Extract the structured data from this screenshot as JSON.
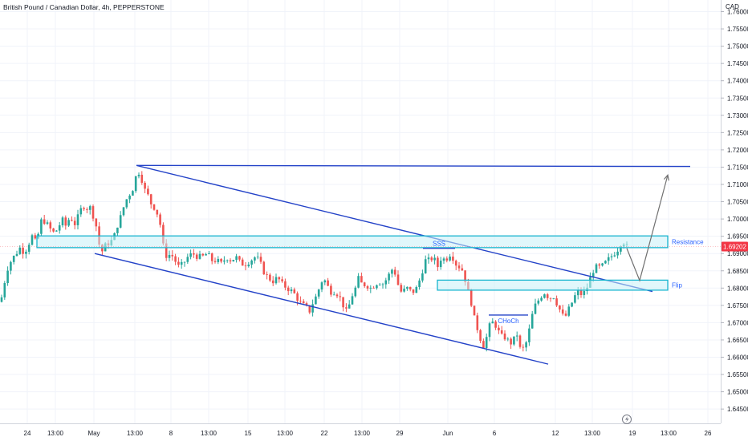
{
  "symbol_title": "British Pound / Canadian Dollar, 4h, PEPPERSTONE",
  "currency": "CAD",
  "last_price": "1.69202",
  "colors": {
    "up": "#26a69a",
    "down": "#ef5350",
    "trendline": "#2443c8",
    "zone_fill": "#c8f0f7",
    "zone_stroke": "#17b5cf",
    "projection": "#707070",
    "grid": "#f0f3fa",
    "price_tag": "#f23645"
  },
  "chart_data": {
    "type": "candlestick",
    "title": "British Pound / Canadian Dollar, 4h, PEPPERSTONE",
    "ylabel": "CAD",
    "ylim": [
      1.643,
      1.7655
    ],
    "y_ticks": [
      "1.76000",
      "1.75500",
      "1.75000",
      "1.74500",
      "1.74000",
      "1.73500",
      "1.73000",
      "1.72500",
      "1.72000",
      "1.71500",
      "1.71000",
      "1.70500",
      "1.70000",
      "1.69500",
      "1.69000",
      "1.68500",
      "1.68000",
      "1.67500",
      "1.67000",
      "1.66500",
      "1.66000",
      "1.65500",
      "1.65000",
      "1.64500"
    ],
    "x_ticks": [
      "24",
      "13:00",
      "May",
      "13:00",
      "8",
      "13:00",
      "15",
      "13:00",
      "22",
      "13:00",
      "29",
      "Jun",
      "6",
      "12",
      "13:00",
      "19",
      "13:00",
      "26"
    ],
    "path": [
      [
        0,
        1.676
      ],
      [
        3,
        1.678
      ],
      [
        8,
        1.685
      ],
      [
        14,
        1.688
      ],
      [
        20,
        1.69
      ],
      [
        26,
        1.692
      ],
      [
        30,
        1.69
      ],
      [
        34,
        1.692
      ],
      [
        40,
        1.695
      ],
      [
        45,
        1.693
      ],
      [
        48,
        1.696
      ],
      [
        52,
        1.7
      ],
      [
        57,
        1.699
      ],
      [
        60,
        1.698
      ],
      [
        66,
        1.696
      ],
      [
        72,
        1.697
      ],
      [
        77,
        1.7
      ],
      [
        82,
        1.698
      ],
      [
        88,
        1.701
      ],
      [
        92,
        1.698
      ],
      [
        98,
        1.701
      ],
      [
        103,
        1.704
      ],
      [
        108,
        1.703
      ],
      [
        111,
        1.704
      ],
      [
        116,
        1.701
      ],
      [
        121,
        1.697
      ],
      [
        124,
        1.692
      ],
      [
        126,
        1.69
      ],
      [
        130,
        1.692
      ],
      [
        135,
        1.693
      ],
      [
        141,
        1.694
      ],
      [
        146,
        1.698
      ],
      [
        151,
        1.701
      ],
      [
        156,
        1.705
      ],
      [
        161,
        1.707
      ],
      [
        166,
        1.709
      ],
      [
        169,
        1.712
      ],
      [
        172,
        1.714
      ],
      [
        176,
        1.712
      ],
      [
        181,
        1.708
      ],
      [
        184,
        1.707
      ],
      [
        189,
        1.704
      ],
      [
        194,
        1.703
      ],
      [
        198,
        1.7
      ],
      [
        201,
        1.697
      ],
      [
        204,
        1.691
      ],
      [
        208,
        1.689
      ],
      [
        213,
        1.69
      ],
      [
        218,
        1.688
      ],
      [
        223,
        1.686
      ],
      [
        228,
        1.687
      ],
      [
        234,
        1.689
      ],
      [
        240,
        1.69
      ],
      [
        247,
        1.689
      ],
      [
        252,
        1.689
      ],
      [
        258,
        1.69
      ],
      [
        264,
        1.688
      ],
      [
        270,
        1.688
      ],
      [
        276,
        1.687
      ],
      [
        282,
        1.689
      ],
      [
        288,
        1.688
      ],
      [
        294,
        1.689
      ],
      [
        300,
        1.687
      ],
      [
        306,
        1.687
      ],
      [
        312,
        1.688
      ],
      [
        318,
        1.689
      ],
      [
        323,
        1.688
      ],
      [
        328,
        1.685
      ],
      [
        334,
        1.683
      ],
      [
        340,
        1.682
      ],
      [
        346,
        1.683
      ],
      [
        352,
        1.681
      ],
      [
        358,
        1.68
      ],
      [
        364,
        1.679
      ],
      [
        368,
        1.678
      ],
      [
        373,
        1.676
      ],
      [
        378,
        1.675
      ],
      [
        384,
        1.674
      ],
      [
        387,
        1.673
      ],
      [
        390,
        1.676
      ],
      [
        395,
        1.678
      ],
      [
        399,
        1.681
      ],
      [
        403,
        1.683
      ],
      [
        407,
        1.681
      ],
      [
        412,
        1.679
      ],
      [
        417,
        1.679
      ],
      [
        422,
        1.678
      ],
      [
        426,
        1.676
      ],
      [
        431,
        1.673
      ],
      [
        435,
        1.675
      ],
      [
        439,
        1.678
      ],
      [
        443,
        1.68
      ],
      [
        447,
        1.683
      ],
      [
        451,
        1.681
      ],
      [
        456,
        1.681
      ],
      [
        462,
        1.68
      ],
      [
        467,
        1.681
      ],
      [
        472,
        1.682
      ],
      [
        476,
        1.681
      ],
      [
        480,
        1.682
      ],
      [
        485,
        1.684
      ],
      [
        490,
        1.686
      ],
      [
        494,
        1.683
      ],
      [
        498,
        1.679
      ],
      [
        502,
        1.679
      ],
      [
        507,
        1.68
      ],
      [
        512,
        1.679
      ],
      [
        517,
        1.679
      ],
      [
        521,
        1.681
      ],
      [
        525,
        1.684
      ],
      [
        530,
        1.688
      ],
      [
        535,
        1.688
      ],
      [
        540,
        1.689
      ],
      [
        545,
        1.686
      ],
      [
        550,
        1.689
      ],
      [
        555,
        1.688
      ],
      [
        560,
        1.69
      ],
      [
        564,
        1.689
      ],
      [
        568,
        1.687
      ],
      [
        573,
        1.686
      ],
      [
        577,
        1.685
      ],
      [
        582,
        1.68
      ],
      [
        587,
        1.676
      ],
      [
        592,
        1.67
      ],
      [
        597,
        1.667
      ],
      [
        600,
        1.664
      ],
      [
        604,
        1.663
      ],
      [
        608,
        1.668
      ],
      [
        612,
        1.67
      ],
      [
        616,
        1.67
      ],
      [
        620,
        1.668
      ],
      [
        624,
        1.666
      ],
      [
        628,
        1.666
      ],
      [
        632,
        1.665
      ],
      [
        636,
        1.664
      ],
      [
        640,
        1.665
      ],
      [
        644,
        1.667
      ],
      [
        646,
        1.663
      ],
      [
        650,
        1.662
      ],
      [
        654,
        1.663
      ],
      [
        658,
        1.666
      ],
      [
        661,
        1.67
      ],
      [
        665,
        1.674
      ],
      [
        669,
        1.676
      ],
      [
        673,
        1.677
      ],
      [
        677,
        1.679
      ],
      [
        681,
        1.678
      ],
      [
        685,
        1.677
      ],
      [
        689,
        1.678
      ],
      [
        693,
        1.676
      ],
      [
        697,
        1.674
      ],
      [
        701,
        1.672
      ],
      [
        705,
        1.672
      ],
      [
        709,
        1.674
      ],
      [
        713,
        1.676
      ],
      [
        717,
        1.678
      ],
      [
        721,
        1.679
      ],
      [
        725,
        1.678
      ],
      [
        729,
        1.679
      ],
      [
        733,
        1.681
      ],
      [
        737,
        1.684
      ],
      [
        741,
        1.686
      ],
      [
        745,
        1.686
      ],
      [
        749,
        1.686
      ],
      [
        753,
        1.687
      ],
      [
        757,
        1.688
      ],
      [
        761,
        1.689
      ],
      [
        765,
        1.69
      ],
      [
        769,
        1.691
      ],
      [
        772,
        1.692
      ],
      [
        775,
        1.694
      ],
      [
        778,
        1.693
      ],
      [
        781,
        1.692
      ]
    ],
    "annotations": [
      {
        "kind": "channel-top",
        "text": "",
        "p1": [
          170,
          1.7155
        ],
        "p2": [
          813,
          1.679
        ]
      },
      {
        "kind": "channel-bottom",
        "text": "",
        "p1": [
          118,
          1.69
        ],
        "p2": [
          683,
          1.658
        ]
      },
      {
        "kind": "horizontal-line",
        "text": "",
        "p1": [
          170,
          1.7155
        ],
        "p2": [
          860,
          1.7152
        ]
      },
      {
        "kind": "zone",
        "text": "Resistance",
        "x1": 46,
        "x2": 832,
        "y1": 1.6951,
        "y2": 1.6917
      },
      {
        "kind": "zone",
        "text": "Flip",
        "x1": 545,
        "x2": 832,
        "y1": 1.6823,
        "y2": 1.6794
      },
      {
        "kind": "label-line",
        "text": "SSS",
        "p1": [
          527,
          1.6915
        ],
        "p2": [
          567,
          1.6915
        ]
      },
      {
        "kind": "label-line",
        "text": "CHoCh",
        "p1": [
          609,
          1.6722
        ],
        "p2": [
          658,
          1.6722
        ]
      },
      {
        "kind": "projection",
        "text": "",
        "points": [
          [
            781,
            1.6915
          ],
          [
            797,
            1.6822
          ],
          [
            832,
            1.7127
          ]
        ]
      }
    ]
  }
}
